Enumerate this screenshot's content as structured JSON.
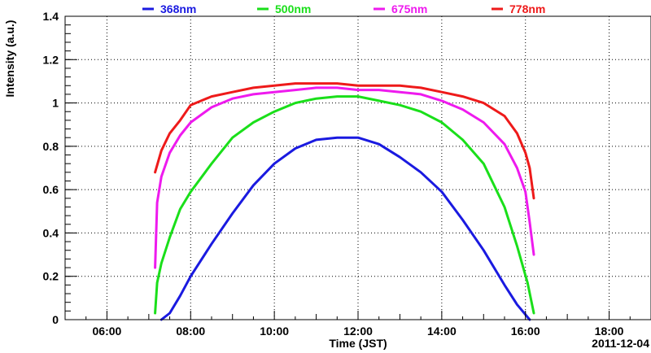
{
  "chart_data": {
    "type": "line",
    "title": "",
    "xlabel": "Time (JST)",
    "ylabel": "Intensity (a.u.)",
    "date_label": "2011-12-04",
    "x_unit": "hours (JST)",
    "xlim": [
      5.0,
      19.0
    ],
    "ylim": [
      0,
      1.4
    ],
    "x_ticks": [
      6,
      8,
      10,
      12,
      14,
      16,
      18
    ],
    "x_tick_labels": [
      "06:00",
      "08:00",
      "10:00",
      "12:00",
      "14:00",
      "16:00",
      "18:00"
    ],
    "y_ticks": [
      0,
      0.2,
      0.4,
      0.6,
      0.8,
      1.0,
      1.2,
      1.4
    ],
    "y_tick_labels": [
      "0",
      "0.2",
      "0.4",
      "0.6",
      "0.8",
      "1",
      "1.2",
      "1.4"
    ],
    "grid": true,
    "legend_position": "top",
    "series": [
      {
        "name": "368nm",
        "color": "#1a1ae0",
        "points": [
          [
            7.3,
            0.0
          ],
          [
            7.5,
            0.03
          ],
          [
            7.75,
            0.11
          ],
          [
            8.0,
            0.2
          ],
          [
            8.5,
            0.35
          ],
          [
            9.0,
            0.49
          ],
          [
            9.5,
            0.62
          ],
          [
            10.0,
            0.72
          ],
          [
            10.5,
            0.79
          ],
          [
            11.0,
            0.83
          ],
          [
            11.5,
            0.84
          ],
          [
            12.0,
            0.84
          ],
          [
            12.5,
            0.81
          ],
          [
            13.0,
            0.75
          ],
          [
            13.5,
            0.68
          ],
          [
            14.0,
            0.59
          ],
          [
            14.5,
            0.46
          ],
          [
            15.0,
            0.32
          ],
          [
            15.5,
            0.16
          ],
          [
            15.8,
            0.07
          ],
          [
            16.1,
            0.0
          ]
        ]
      },
      {
        "name": "500nm",
        "color": "#1adf1a",
        "points": [
          [
            7.15,
            0.03
          ],
          [
            7.2,
            0.17
          ],
          [
            7.3,
            0.26
          ],
          [
            7.5,
            0.38
          ],
          [
            7.75,
            0.51
          ],
          [
            8.0,
            0.59
          ],
          [
            8.5,
            0.72
          ],
          [
            9.0,
            0.84
          ],
          [
            9.5,
            0.91
          ],
          [
            10.0,
            0.96
          ],
          [
            10.5,
            1.0
          ],
          [
            11.0,
            1.02
          ],
          [
            11.5,
            1.03
          ],
          [
            12.0,
            1.03
          ],
          [
            12.5,
            1.01
          ],
          [
            13.0,
            0.99
          ],
          [
            13.5,
            0.96
          ],
          [
            14.0,
            0.91
          ],
          [
            14.5,
            0.83
          ],
          [
            15.0,
            0.72
          ],
          [
            15.5,
            0.52
          ],
          [
            15.8,
            0.34
          ],
          [
            16.05,
            0.17
          ],
          [
            16.2,
            0.03
          ]
        ]
      },
      {
        "name": "675nm",
        "color": "#ee1aee",
        "points": [
          [
            7.15,
            0.24
          ],
          [
            7.2,
            0.54
          ],
          [
            7.3,
            0.66
          ],
          [
            7.5,
            0.77
          ],
          [
            7.75,
            0.85
          ],
          [
            8.0,
            0.91
          ],
          [
            8.5,
            0.98
          ],
          [
            9.0,
            1.02
          ],
          [
            9.5,
            1.04
          ],
          [
            10.0,
            1.05
          ],
          [
            10.5,
            1.06
          ],
          [
            11.0,
            1.07
          ],
          [
            11.5,
            1.07
          ],
          [
            12.0,
            1.06
          ],
          [
            12.5,
            1.06
          ],
          [
            13.0,
            1.05
          ],
          [
            13.5,
            1.04
          ],
          [
            14.0,
            1.01
          ],
          [
            14.5,
            0.97
          ],
          [
            15.0,
            0.91
          ],
          [
            15.5,
            0.81
          ],
          [
            15.8,
            0.7
          ],
          [
            16.0,
            0.59
          ],
          [
            16.1,
            0.45
          ],
          [
            16.2,
            0.3
          ]
        ]
      },
      {
        "name": "778nm",
        "color": "#ee1a1a",
        "points": [
          [
            7.15,
            0.68
          ],
          [
            7.3,
            0.78
          ],
          [
            7.5,
            0.86
          ],
          [
            7.75,
            0.92
          ],
          [
            8.0,
            0.99
          ],
          [
            8.5,
            1.03
          ],
          [
            9.0,
            1.05
          ],
          [
            9.5,
            1.07
          ],
          [
            10.0,
            1.08
          ],
          [
            10.5,
            1.09
          ],
          [
            11.0,
            1.09
          ],
          [
            11.5,
            1.09
          ],
          [
            12.0,
            1.08
          ],
          [
            12.5,
            1.08
          ],
          [
            13.0,
            1.08
          ],
          [
            13.5,
            1.07
          ],
          [
            14.0,
            1.05
          ],
          [
            14.5,
            1.03
          ],
          [
            15.0,
            1.0
          ],
          [
            15.5,
            0.94
          ],
          [
            15.8,
            0.86
          ],
          [
            16.0,
            0.77
          ],
          [
            16.1,
            0.7
          ],
          [
            16.2,
            0.56
          ]
        ]
      }
    ]
  }
}
